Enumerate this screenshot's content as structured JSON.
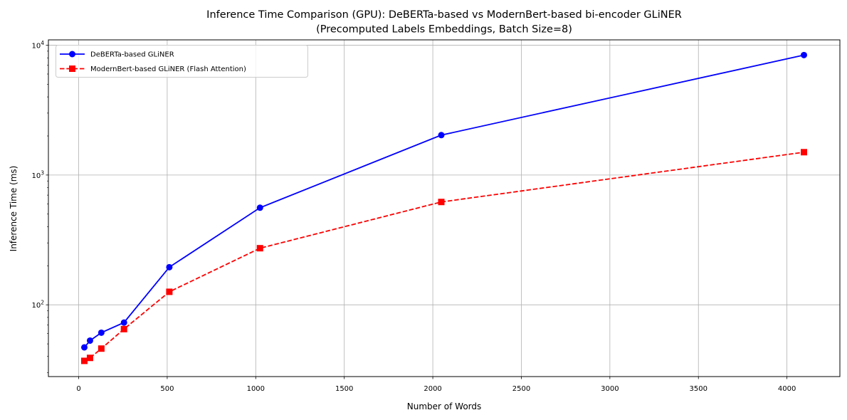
{
  "chart_data": {
    "type": "line",
    "title": "Inference Time Comparison (GPU): DeBERTa-based vs ModernBert-based bi-encoder GLiNER",
    "subtitle": "(Precomputed Labels Embeddings, Batch Size=8)",
    "xlabel": "Number of Words",
    "ylabel": "Inference Time (ms)",
    "yscale": "log",
    "grid": true,
    "grid_color": "#b0b0b0",
    "axis_color": "#000000",
    "background_color": "#ffffff",
    "xlim": [
      -171,
      4299
    ],
    "ylim": [
      28,
      11000
    ],
    "x": [
      32,
      64,
      128,
      256,
      512,
      1024,
      2048,
      4096
    ],
    "series": [
      {
        "name": "DeBERTa-based GLiNER",
        "color": "#0000ff",
        "linestyle": "solid",
        "marker": "circle",
        "values": [
          47,
          53,
          61,
          73,
          195,
          560,
          2030,
          8400
        ]
      },
      {
        "name": "ModernBert-based GLiNER (Flash Attention)",
        "color": "#ff0000",
        "linestyle": "dashed",
        "marker": "square",
        "values": [
          37,
          39,
          46,
          65,
          126,
          273,
          620,
          1500
        ]
      }
    ],
    "x_ticks": [
      0,
      500,
      1000,
      1500,
      2000,
      2500,
      3000,
      3500,
      4000
    ],
    "y_ticks": [
      {
        "value": 100,
        "base": "10",
        "exp": "2"
      },
      {
        "value": 1000,
        "base": "10",
        "exp": "3"
      },
      {
        "value": 10000,
        "base": "10",
        "exp": "4"
      }
    ],
    "legend_position": "upper-left"
  }
}
